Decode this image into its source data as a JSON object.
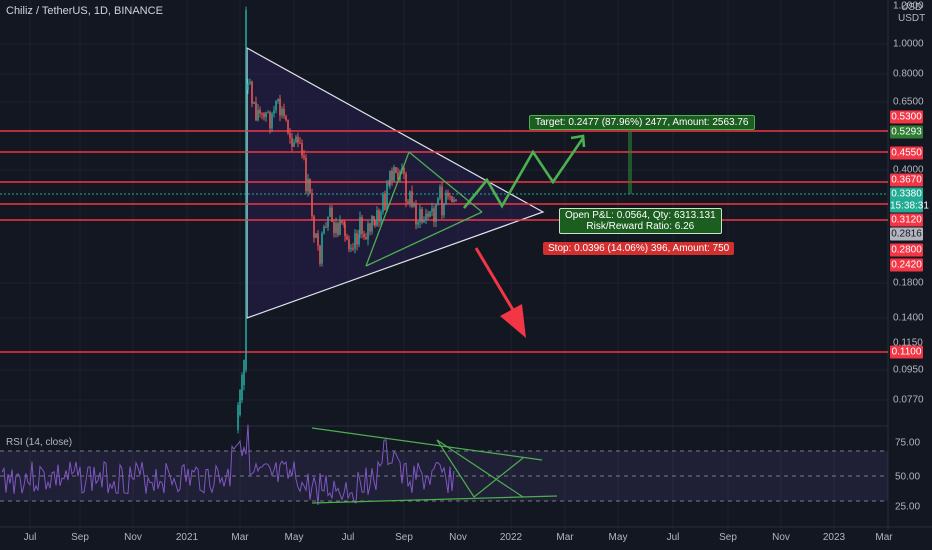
{
  "header": {
    "symbol_title": "Chiliz / TetherUS, 1D, BINANCE",
    "currency_line1": "USD",
    "currency_line2": "USDT",
    "rsi_title": "RSI (14, close)"
  },
  "price_axis_ticks": [
    "1.2000",
    "1.0000",
    "0.8000",
    "0.6500",
    "0.4000",
    "0.1800",
    "0.1400",
    "0.1150",
    "0.0950",
    "0.0770"
  ],
  "price_tags": [
    {
      "label": "0.5300",
      "color": "#f23645"
    },
    {
      "label": "0.5293",
      "color": "#2e7d32"
    },
    {
      "label": "0.4550",
      "color": "#f23645"
    },
    {
      "label": "0.3670",
      "color": "#f23645"
    },
    {
      "label": "0.3380",
      "color": "#22ab94"
    },
    {
      "label": "15:38:31",
      "color": "#22ab94"
    },
    {
      "label": "0.3120",
      "color": "#f23645"
    },
    {
      "label": "0.2816",
      "color": "#b2b5be"
    },
    {
      "label": "0.2800",
      "color": "#f23645"
    },
    {
      "label": "0.2420",
      "color": "#f23645"
    },
    {
      "label": "0.1100",
      "color": "#f23645"
    }
  ],
  "time_axis": [
    "Jul",
    "Sep",
    "Nov",
    "2021",
    "Mar",
    "May",
    "Jul",
    "Sep",
    "Nov",
    "2022",
    "Mar",
    "May",
    "Jul",
    "Sep",
    "Nov",
    "2023",
    "Mar"
  ],
  "rsi_axis": [
    "75.00",
    "50.00",
    "25.00"
  ],
  "position": {
    "target_text": "Target: 0.2477 (87.96%) 2477, Amount: 2563.76",
    "pnl_line1": "Open P&L: 0.0564, Qty: 6313.131",
    "pnl_line2": "Risk/Reward Ratio: 6.26",
    "stop_text": "Stop: 0.0396 (14.06%) 396, Amount: 750"
  },
  "colors": {
    "background": "#131722",
    "horizontal_level": "#f23645",
    "triangle": "#ffffff",
    "wedge": "#4caf50",
    "bearish_arrow": "#f23645",
    "bullish_path": "#4caf50",
    "rsi_line": "#7e57c2",
    "up_candle": "#26a69a",
    "down_candle": "#ef5350"
  }
}
